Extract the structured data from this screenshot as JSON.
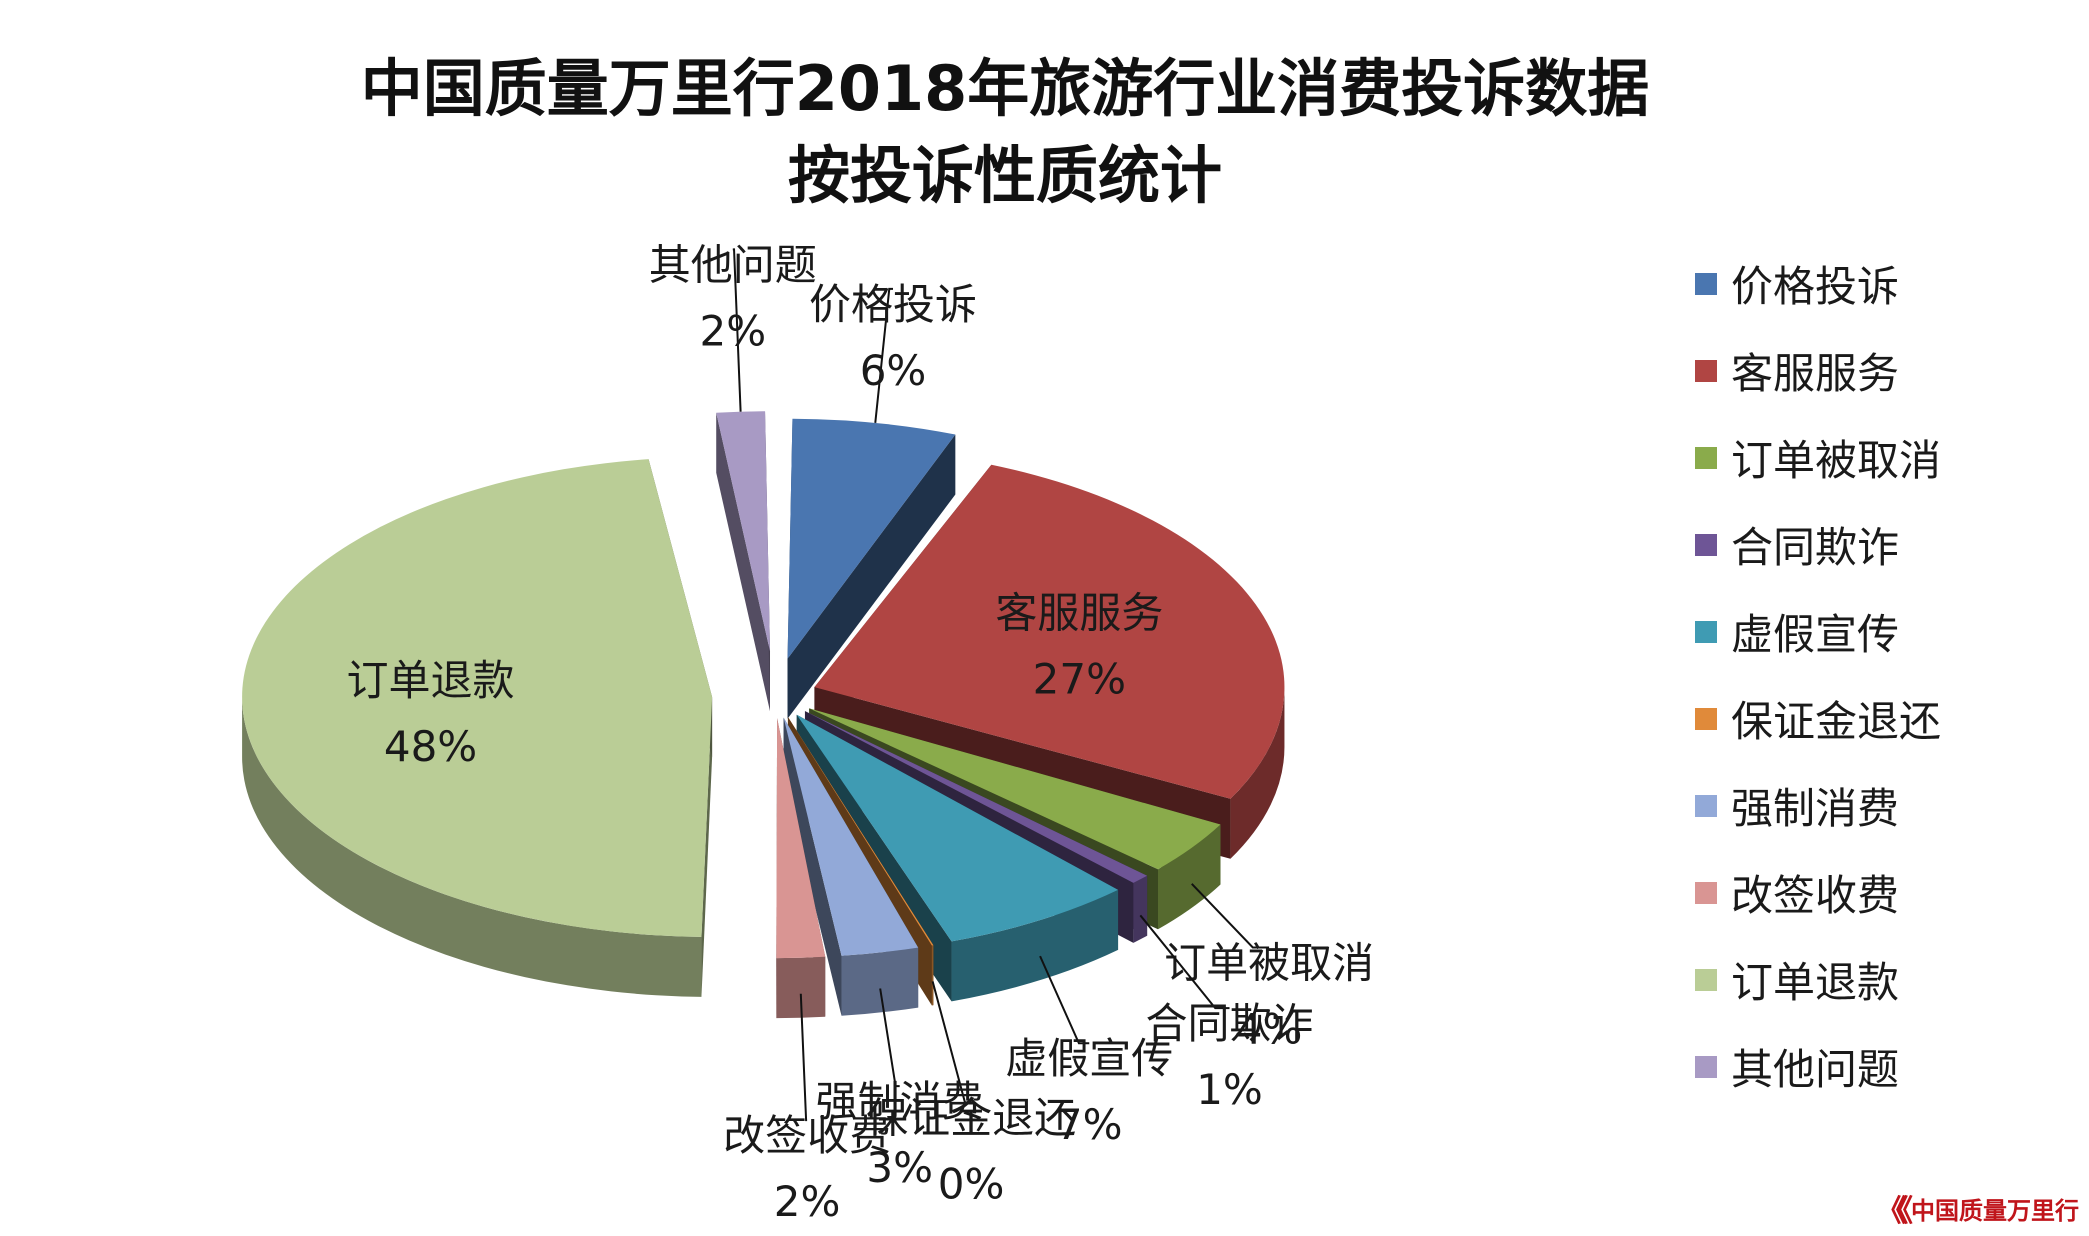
{
  "title_line1": "中国质量万里行2018年旅游行业消费投诉数据",
  "title_line2": "按投诉性质统计",
  "chart_data": {
    "type": "pie",
    "style": "3d-exploded",
    "title": "中国质量万里行2018年旅游行业消费投诉数据 按投诉性质统计",
    "legend_position": "right",
    "categories": [
      "价格投诉",
      "客服服务",
      "订单被取消",
      "合同欺诈",
      "虚假宣传",
      "保证金退还",
      "强制消费",
      "改签收费",
      "订单退款",
      "其他问题"
    ],
    "values": [
      6,
      27,
      4,
      1,
      7,
      0,
      3,
      2,
      48,
      2
    ],
    "value_labels": [
      "6%",
      "27%",
      "4%",
      "1%",
      "7%",
      "0%",
      "3%",
      "2%",
      "48%",
      "2%"
    ],
    "colors": [
      "#4a76b0",
      "#b04543",
      "#8aab4b",
      "#6e5596",
      "#3f9bb3",
      "#e08a3a",
      "#92a9d8",
      "#d99593",
      "#bacd96",
      "#a89ac4"
    ]
  },
  "brand_mark": "《《",
  "brand_text": "中国质量万里行"
}
